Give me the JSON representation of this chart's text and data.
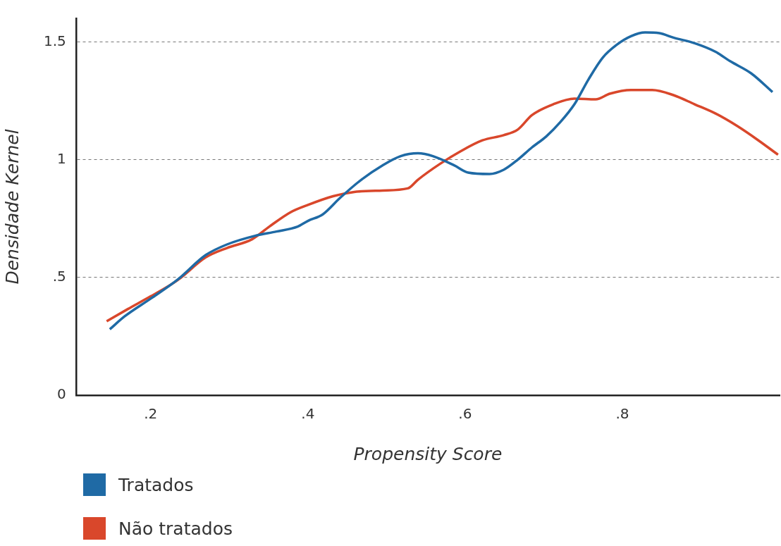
{
  "chart_data": {
    "type": "line",
    "xlabel": "Propensity Score",
    "ylabel": "Densidade Kernel",
    "xlim": [
      0.105,
      1.0
    ],
    "ylim": [
      0,
      1.6
    ],
    "xticks": [
      {
        "value": 0.2,
        "label": ".2"
      },
      {
        "value": 0.4,
        "label": ".4"
      },
      {
        "value": 0.6,
        "label": ".6"
      },
      {
        "value": 0.8,
        "label": ".8"
      }
    ],
    "yticks": [
      0,
      {
        "value": 0.5,
        "label": ".5"
      },
      1,
      1.5
    ],
    "grid": "y",
    "legend": "bottom left",
    "marker": "none",
    "line_style": "solid",
    "series": [
      {
        "name": "Tratados",
        "color": "#1f6aa5",
        "x": [
          0.148,
          0.167,
          0.2,
          0.234,
          0.27,
          0.297,
          0.333,
          0.36,
          0.387,
          0.4,
          0.419,
          0.441,
          0.468,
          0.495,
          0.518,
          0.54,
          0.559,
          0.586,
          0.604,
          0.631,
          0.649,
          0.667,
          0.685,
          0.703,
          0.721,
          0.739,
          0.757,
          0.775,
          0.793,
          0.811,
          0.829,
          0.847,
          0.865,
          0.892,
          0.919,
          0.937,
          0.964,
          0.991
        ],
        "values": [
          0.28,
          0.335,
          0.41,
          0.49,
          0.595,
          0.64,
          0.677,
          0.695,
          0.716,
          0.74,
          0.768,
          0.838,
          0.915,
          0.976,
          1.015,
          1.027,
          1.015,
          0.976,
          0.945,
          0.939,
          0.957,
          1.0,
          1.052,
          1.098,
          1.159,
          1.235,
          1.341,
          1.433,
          1.488,
          1.524,
          1.54,
          1.537,
          1.518,
          1.494,
          1.457,
          1.418,
          1.366,
          1.287
        ]
      },
      {
        "name": "Não tratados",
        "color": "#d9472b",
        "x": [
          0.144,
          0.171,
          0.2,
          0.234,
          0.27,
          0.297,
          0.329,
          0.351,
          0.378,
          0.4,
          0.432,
          0.459,
          0.495,
          0.527,
          0.54,
          0.568,
          0.595,
          0.622,
          0.649,
          0.667,
          0.685,
          0.712,
          0.739,
          0.766,
          0.784,
          0.811,
          0.838,
          0.865,
          0.892,
          0.919,
          0.946,
          0.973,
          0.998
        ],
        "values": [
          0.314,
          0.366,
          0.42,
          0.488,
          0.585,
          0.625,
          0.662,
          0.716,
          0.777,
          0.808,
          0.845,
          0.863,
          0.869,
          0.878,
          0.915,
          0.982,
          1.037,
          1.082,
          1.104,
          1.128,
          1.189,
          1.235,
          1.259,
          1.256,
          1.28,
          1.296,
          1.296,
          1.274,
          1.235,
          1.195,
          1.143,
          1.082,
          1.021
        ]
      }
    ]
  }
}
